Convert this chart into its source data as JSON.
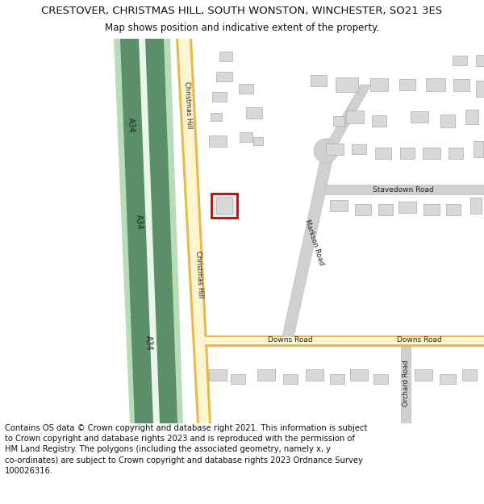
{
  "title_line1": "CRESTOVER, CHRISTMAS HILL, SOUTH WONSTON, WINCHESTER, SO21 3ES",
  "title_line2": "Map shows position and indicative extent of the property.",
  "footer_text": "Contains OS data © Crown copyright and database right 2021. This information is subject to Crown copyright and database rights 2023 and is reproduced with the permission of HM Land Registry. The polygons (including the associated geometry, namely x, y co-ordinates) are subject to Crown copyright and database rights 2023 Ordnance Survey 100026316.",
  "background_color": "#ffffff",
  "map_bg": "#ffffff",
  "motorway_green_dark": "#5a8f6a",
  "motorway_green_light": "#b8dbb8",
  "motorway_white_strip": "#e8f5e8",
  "road_yellow": "#e8b84b",
  "road_yellow_light": "#fdf5d0",
  "road_grey": "#d0d0d0",
  "road_grey_edge": "#bbbbbb",
  "building_fill": "#d8d8d8",
  "building_edge": "#aaaaaa",
  "highlight_fill": "#e8e8e8",
  "highlight_edge": "#cc0000",
  "title_fontsize": 9.5,
  "subtitle_fontsize": 8.5,
  "footer_fontsize": 7.2
}
